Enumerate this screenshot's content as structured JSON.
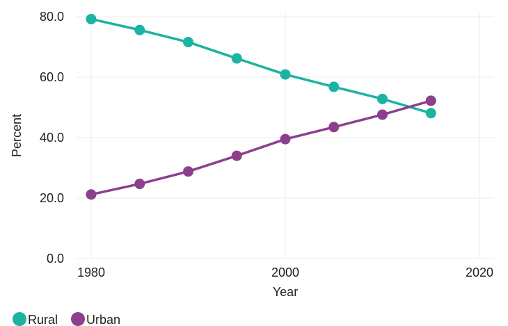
{
  "chart_data": {
    "type": "line",
    "xlabel": "Year",
    "ylabel": "Percent",
    "xlim": [
      1980,
      2020
    ],
    "ylim": [
      0,
      80
    ],
    "x_ticks": [
      1980,
      2000,
      2020
    ],
    "y_ticks": [
      "0.0",
      "20.0",
      "40.0",
      "60.0",
      "80.0"
    ],
    "grid": true,
    "legend_position": "bottom-left",
    "x": [
      1980,
      1985,
      1990,
      1995,
      2000,
      2005,
      2010,
      2015
    ],
    "series": [
      {
        "name": "Rural",
        "color": "#1bb3a3",
        "values": [
          79.2,
          75.6,
          71.6,
          66.2,
          60.9,
          56.8,
          52.8,
          48.1
        ]
      },
      {
        "name": "Urban",
        "color": "#8c3f8c",
        "values": [
          21.2,
          24.7,
          28.8,
          34.0,
          39.5,
          43.5,
          47.6,
          52.2
        ]
      }
    ]
  }
}
